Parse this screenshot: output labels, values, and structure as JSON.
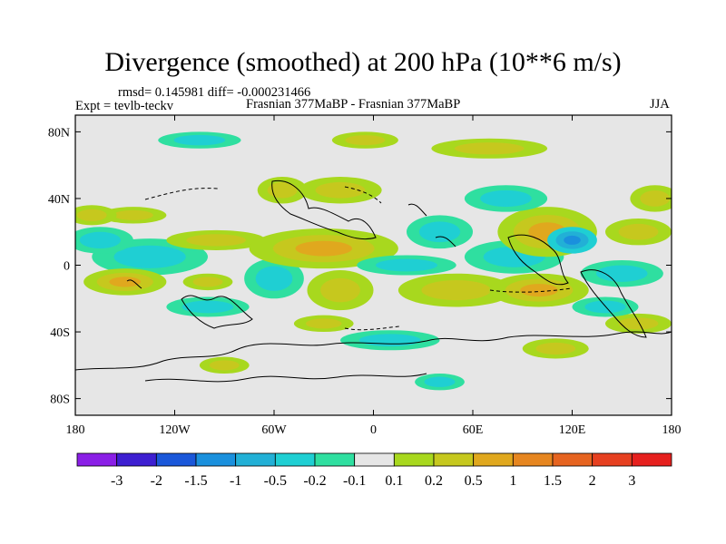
{
  "title": "Divergence (smoothed) at 200 hPa (10**6 m/s)",
  "stats": "rmsd= 0.145981 diff= -0.000231466",
  "expt": "Expt = tevlb-teckv",
  "comparison": "Frasnian 377MaBP - Frasnian 377MaBP",
  "season": "JJA",
  "chart_data": {
    "type": "heatmap",
    "title": "Divergence (smoothed) at 200 hPa (10**6 m/s)",
    "x_axis": {
      "range": [
        -180,
        180
      ],
      "ticks": [
        -180,
        -120,
        -60,
        0,
        60,
        120,
        180
      ],
      "tick_labels": [
        "180",
        "120W",
        "60W",
        "0",
        "60E",
        "120E",
        "180"
      ]
    },
    "y_axis": {
      "range": [
        -90,
        90
      ],
      "ticks": [
        80,
        40,
        0,
        -40,
        -80
      ],
      "tick_labels": [
        "80N",
        "40N",
        "0",
        "40S",
        "80S"
      ]
    },
    "colorbar": {
      "labels": [
        "-3",
        "-2",
        "-1.5",
        "-1",
        "-0.5",
        "-0.2",
        "-0.1",
        "0.1",
        "0.2",
        "0.5",
        "1",
        "1.5",
        "2",
        "3"
      ],
      "colors": [
        "#8a1fe6",
        "#3d1fd1",
        "#1a57d9",
        "#1a90dd",
        "#22b0d6",
        "#1fcfd3",
        "#2fdfa0",
        "#e6e6e6",
        "#a8d81e",
        "#c6c81e",
        "#e0a81e",
        "#e68620",
        "#e66420",
        "#e64020",
        "#e6201e"
      ]
    },
    "features": [
      {
        "lon": -135,
        "lat": 5,
        "rx": 35,
        "ry": 11,
        "bin": "neg_weak"
      },
      {
        "lon": -150,
        "lat": -10,
        "rx": 25,
        "ry": 8,
        "bin": "pos_mid"
      },
      {
        "lon": -145,
        "lat": 30,
        "rx": 20,
        "ry": 5,
        "bin": "pos_weak"
      },
      {
        "lon": -95,
        "lat": 15,
        "rx": 30,
        "ry": 6,
        "bin": "pos_weak"
      },
      {
        "lon": -100,
        "lat": -25,
        "rx": 25,
        "ry": 6,
        "bin": "neg_weak"
      },
      {
        "lon": -100,
        "lat": -10,
        "rx": 15,
        "ry": 5,
        "bin": "pos_weak"
      },
      {
        "lon": -60,
        "lat": -8,
        "rx": 18,
        "ry": 12,
        "bin": "neg_weak"
      },
      {
        "lon": -55,
        "lat": 45,
        "rx": 15,
        "ry": 8,
        "bin": "pos_weak"
      },
      {
        "lon": -30,
        "lat": 10,
        "rx": 45,
        "ry": 12,
        "bin": "pos_mid"
      },
      {
        "lon": -20,
        "lat": -15,
        "rx": 20,
        "ry": 12,
        "bin": "pos_weak"
      },
      {
        "lon": -20,
        "lat": 45,
        "rx": 25,
        "ry": 8,
        "bin": "pos_weak"
      },
      {
        "lon": 20,
        "lat": 0,
        "rx": 30,
        "ry": 6,
        "bin": "neg_weak"
      },
      {
        "lon": 40,
        "lat": 20,
        "rx": 20,
        "ry": 10,
        "bin": "neg_weak"
      },
      {
        "lon": 50,
        "lat": -15,
        "rx": 35,
        "ry": 10,
        "bin": "pos_weak"
      },
      {
        "lon": 85,
        "lat": 5,
        "rx": 30,
        "ry": 10,
        "bin": "neg_weak"
      },
      {
        "lon": 105,
        "lat": 20,
        "rx": 30,
        "ry": 15,
        "bin": "pos_mid"
      },
      {
        "lon": 120,
        "lat": 15,
        "rx": 15,
        "ry": 8,
        "bin": "neg_mid"
      },
      {
        "lon": 100,
        "lat": -15,
        "rx": 30,
        "ry": 10,
        "bin": "pos_mid"
      },
      {
        "lon": 150,
        "lat": -5,
        "rx": 25,
        "ry": 8,
        "bin": "neg_weak"
      },
      {
        "lon": 160,
        "lat": 20,
        "rx": 20,
        "ry": 8,
        "bin": "pos_weak"
      },
      {
        "lon": -90,
        "lat": -60,
        "rx": 15,
        "ry": 5,
        "bin": "pos_weak"
      },
      {
        "lon": -30,
        "lat": -35,
        "rx": 18,
        "ry": 5,
        "bin": "pos_weak"
      },
      {
        "lon": -105,
        "lat": 75,
        "rx": 25,
        "ry": 5,
        "bin": "neg_weak"
      },
      {
        "lon": -5,
        "lat": 75,
        "rx": 20,
        "ry": 5,
        "bin": "pos_weak"
      },
      {
        "lon": 70,
        "lat": 70,
        "rx": 35,
        "ry": 6,
        "bin": "pos_weak"
      },
      {
        "lon": 10,
        "lat": -45,
        "rx": 30,
        "ry": 6,
        "bin": "neg_weak"
      },
      {
        "lon": 110,
        "lat": -50,
        "rx": 20,
        "ry": 6,
        "bin": "pos_weak"
      },
      {
        "lon": 40,
        "lat": -70,
        "rx": 15,
        "ry": 5,
        "bin": "neg_weak"
      },
      {
        "lon": 160,
        "lat": -35,
        "rx": 20,
        "ry": 6,
        "bin": "pos_weak"
      },
      {
        "lon": 170,
        "lat": 40,
        "rx": 15,
        "ry": 8,
        "bin": "pos_weak"
      },
      {
        "lon": -165,
        "lat": 15,
        "rx": 20,
        "ry": 8,
        "bin": "neg_weak"
      },
      {
        "lon": 80,
        "lat": 40,
        "rx": 25,
        "ry": 8,
        "bin": "neg_weak"
      },
      {
        "lon": -170,
        "lat": 30,
        "rx": 15,
        "ry": 6,
        "bin": "pos_weak"
      },
      {
        "lon": 140,
        "lat": -25,
        "rx": 20,
        "ry": 6,
        "bin": "neg_weak"
      }
    ]
  }
}
